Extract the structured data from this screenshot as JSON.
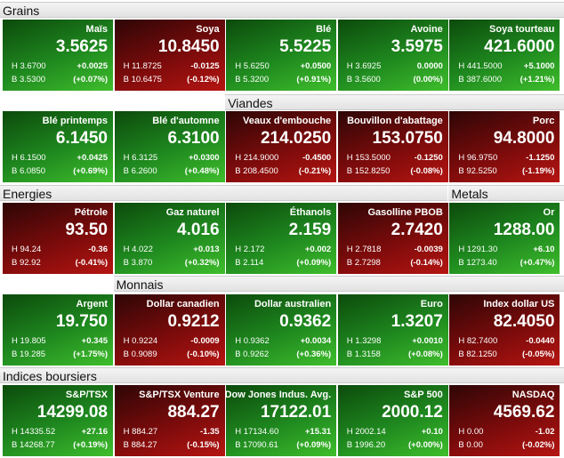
{
  "rows": [
    {
      "headers": [
        "Grains"
      ],
      "tiles": [
        {
          "name": "Maïs",
          "price": "3.5625",
          "high": "H 3.6700",
          "change": "+0.0025",
          "low": "B 3.5300",
          "pct": "(+0.07%)",
          "trend": "up"
        },
        {
          "name": "Soya",
          "price": "10.8450",
          "high": "H 11.8725",
          "change": "-0.0125",
          "low": "B 10.6475",
          "pct": "(-0.12%)",
          "trend": "down"
        },
        {
          "name": "Blé",
          "price": "5.5225",
          "high": "H 5.6250",
          "change": "+0.0500",
          "low": "B 5.3200",
          "pct": "(+0.91%)",
          "trend": "up"
        },
        {
          "name": "Avoine",
          "price": "3.5975",
          "high": "H 3.6925",
          "change": "0.0000",
          "low": "B 3.5600",
          "pct": "(0.00%)",
          "trend": "up"
        },
        {
          "name": "Soya tourteau",
          "price": "421.6000",
          "high": "H 441.5000",
          "change": "+5.1000",
          "low": "B 387.6000",
          "pct": "(+1.21%)",
          "trend": "up"
        }
      ]
    },
    {
      "headers": [
        "Viandes"
      ],
      "tiles": [
        {
          "name": "Blé printemps",
          "price": "6.1450",
          "high": "H 6.1500",
          "change": "+0.0425",
          "low": "B 6.0850",
          "pct": "(+0.69%)",
          "trend": "up"
        },
        {
          "name": "Blé d'automne",
          "price": "6.3100",
          "high": "H 6.3125",
          "change": "+0.0300",
          "low": "B 6.2600",
          "pct": "(+0.48%)",
          "trend": "up"
        },
        {
          "name": "Veaux d'embouche",
          "price": "214.0250",
          "high": "H 214.9000",
          "change": "-0.4500",
          "low": "B 208.4500",
          "pct": "(-0.21%)",
          "trend": "down"
        },
        {
          "name": "Bouvillon d'abattage",
          "price": "153.0750",
          "high": "H 153.5000",
          "change": "-0.1250",
          "low": "B 152.8250",
          "pct": "(-0.08%)",
          "trend": "down"
        },
        {
          "name": "Porc",
          "price": "94.8000",
          "high": "H 96.9750",
          "change": "-1.1250",
          "low": "B 92.5250",
          "pct": "(-1.19%)",
          "trend": "down"
        }
      ]
    },
    {
      "headers": [
        "Energies",
        "Metals"
      ],
      "tiles": [
        {
          "name": "Pétrole",
          "price": "93.50",
          "high": "H 94.24",
          "change": "-0.36",
          "low": "B 92.92",
          "pct": "(-0.41%)",
          "trend": "down"
        },
        {
          "name": "Gaz naturel",
          "price": "4.016",
          "high": "H 4.022",
          "change": "+0.013",
          "low": "B 3.870",
          "pct": "(+0.32%)",
          "trend": "up"
        },
        {
          "name": "Éthanols",
          "price": "2.159",
          "high": "H 2.172",
          "change": "+0.002",
          "low": "B 2.114",
          "pct": "(+0.09%)",
          "trend": "up"
        },
        {
          "name": "Gasolline PBOB",
          "price": "2.7420",
          "high": "H 2.7818",
          "change": "-0.0039",
          "low": "B 2.7298",
          "pct": "(-0.14%)",
          "trend": "down"
        },
        {
          "name": "Or",
          "price": "1288.00",
          "high": "H 1291.30",
          "change": "+6.10",
          "low": "B 1273.40",
          "pct": "(+0.47%)",
          "trend": "up"
        }
      ]
    },
    {
      "headers": [
        "Monnais"
      ],
      "tiles": [
        {
          "name": "Argent",
          "price": "19.750",
          "high": "H 19.805",
          "change": "+0.345",
          "low": "B 19.285",
          "pct": "(+1.75%)",
          "trend": "up"
        },
        {
          "name": "Dollar canadien",
          "price": "0.9212",
          "high": "H 0.9224",
          "change": "-0.0009",
          "low": "B 0.9089",
          "pct": "(-0.10%)",
          "trend": "down"
        },
        {
          "name": "Dollar australien",
          "price": "0.9362",
          "high": "H 0.9362",
          "change": "+0.0034",
          "low": "B 0.9262",
          "pct": "(+0.36%)",
          "trend": "up"
        },
        {
          "name": "Euro",
          "price": "1.3207",
          "high": "H 1.3298",
          "change": "+0.0010",
          "low": "B 1.3158",
          "pct": "(+0.08%)",
          "trend": "up"
        },
        {
          "name": "Index dollar US",
          "price": "82.4050",
          "high": "H 82.7400",
          "change": "-0.0440",
          "low": "B 82.1250",
          "pct": "(-0.05%)",
          "trend": "down"
        }
      ]
    },
    {
      "headers": [
        "Indices boursiers"
      ],
      "tiles": [
        {
          "name": "S&P/TSX",
          "price": "14299.08",
          "high": "H 14335.52",
          "change": "+27.16",
          "low": "B 14268.77",
          "pct": "(+0.19%)",
          "trend": "up"
        },
        {
          "name": "S&P/TSX Venture",
          "price": "884.27",
          "high": "H 884.27",
          "change": "-1.35",
          "low": "B 884.27",
          "pct": "(-0.15%)",
          "trend": "down"
        },
        {
          "name": "Dow Jones Indus. Avg.",
          "price": "17122.01",
          "high": "H 17134.60",
          "change": "+15.31",
          "low": "B 17090.61",
          "pct": "(+0.09%)",
          "trend": "up"
        },
        {
          "name": "S&P 500",
          "price": "2000.12",
          "high": "H 2002.14",
          "change": "+0.10",
          "low": "B 1996.20",
          "pct": "(+0.00%)",
          "trend": "up"
        },
        {
          "name": "NASDAQ",
          "price": "4569.62",
          "high": "H 0.00",
          "change": "-1.02",
          "low": "B 0.00",
          "pct": "(-0.02%)",
          "trend": "down"
        }
      ]
    }
  ]
}
